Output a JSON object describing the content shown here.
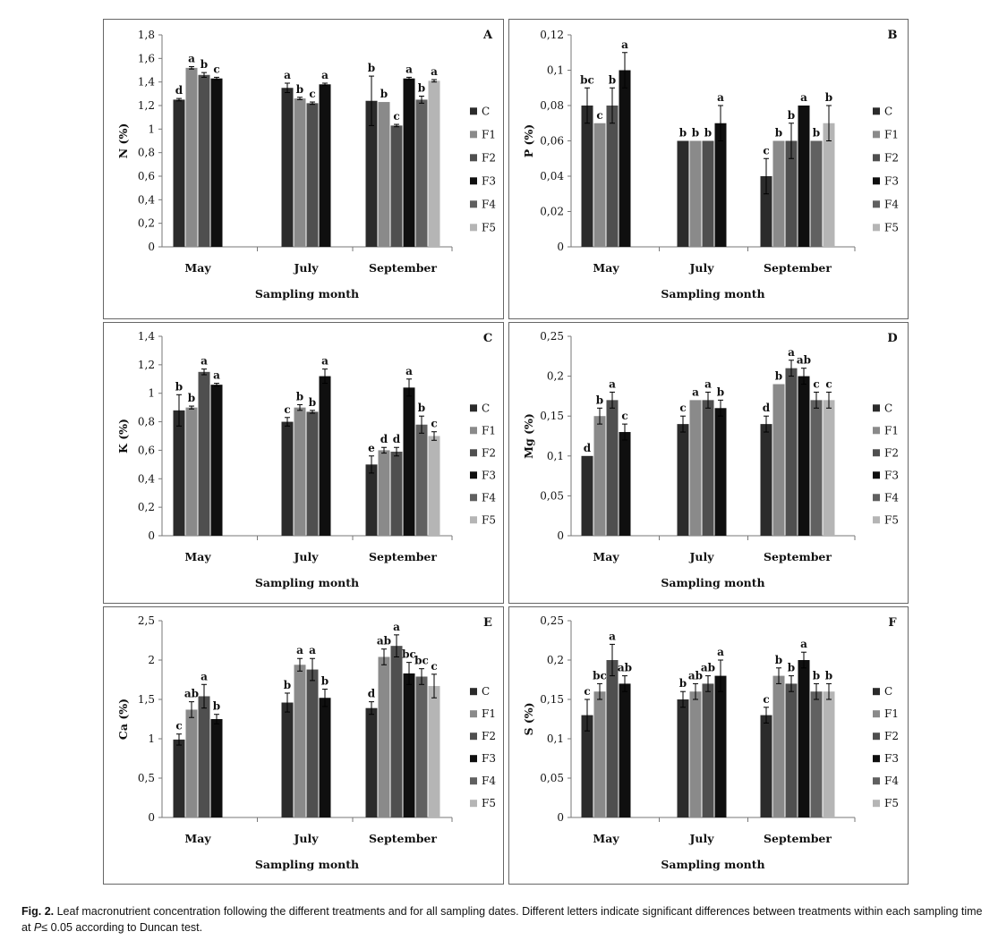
{
  "caption": {
    "label": "Fig. 2.",
    "text_before": " Leaf macronutrient concentration following the different treatments and for all sampling dates. Different letters indicate significant differences between treatments within each sampling time at ",
    "p_symbol": "P",
    "text_after": "≤ 0.05 according to Duncan test."
  },
  "colors": {
    "C": "#2b2b2b",
    "F1": "#8a8a8a",
    "F2": "#4f4f4f",
    "F3": "#0f0f0f",
    "F4": "#606060",
    "F5": "#b5b5b5"
  },
  "chart_data": [
    {
      "type": "bar",
      "panel": "A",
      "ylabel": "N (%)",
      "xlabel": "Sampling month",
      "ylim": [
        0,
        1.8
      ],
      "yticks": [
        "0",
        "0,2",
        "0,4",
        "0,6",
        "0,8",
        "1",
        "1,2",
        "1,4",
        "1,6",
        "1,8"
      ],
      "categories": [
        "May",
        "July",
        "September"
      ],
      "legend": [
        "C",
        "F1",
        "F2",
        "F3",
        "F4",
        "F5"
      ],
      "series": [
        {
          "name": "C",
          "values": [
            1.25,
            1.35,
            1.24
          ],
          "errors": [
            0.01,
            0.04,
            0.21
          ],
          "letters": [
            "d",
            "a",
            "b"
          ]
        },
        {
          "name": "F1",
          "values": [
            1.52,
            1.26,
            1.23
          ],
          "errors": [
            0.01,
            0.01,
            0.0
          ],
          "letters": [
            "a",
            "b",
            "b"
          ]
        },
        {
          "name": "F2",
          "values": [
            1.46,
            1.22,
            1.03
          ],
          "errors": [
            0.02,
            0.01,
            0.01
          ],
          "letters": [
            "b",
            "c",
            "c"
          ]
        },
        {
          "name": "F3",
          "values": [
            1.43,
            1.38,
            1.43
          ],
          "errors": [
            0.01,
            0.01,
            0.01
          ],
          "letters": [
            "c",
            "a",
            "a"
          ]
        },
        {
          "name": "F4",
          "values": [
            null,
            null,
            1.25
          ],
          "errors": [
            null,
            null,
            0.03
          ],
          "letters": [
            "",
            "",
            "b"
          ]
        },
        {
          "name": "F5",
          "values": [
            null,
            null,
            1.41
          ],
          "errors": [
            null,
            null,
            0.01
          ],
          "letters": [
            "",
            "",
            "a"
          ]
        }
      ]
    },
    {
      "type": "bar",
      "panel": "B",
      "ylabel": "P (%)",
      "xlabel": "Sampling month",
      "ylim": [
        0,
        0.12
      ],
      "yticks": [
        "0",
        "0,02",
        "0,04",
        "0,06",
        "0,08",
        "0,1",
        "0,12"
      ],
      "categories": [
        "May",
        "July",
        "September"
      ],
      "legend": [
        "C",
        "F1",
        "F2",
        "F3",
        "F4",
        "F5"
      ],
      "series": [
        {
          "name": "C",
          "values": [
            0.08,
            0.06,
            0.04
          ],
          "errors": [
            0.01,
            0,
            0.01
          ],
          "letters": [
            "bc",
            "b",
            "c"
          ]
        },
        {
          "name": "F1",
          "values": [
            0.07,
            0.06,
            0.06
          ],
          "errors": [
            0,
            0,
            0
          ],
          "letters": [
            "c",
            "b",
            "b"
          ]
        },
        {
          "name": "F2",
          "values": [
            0.08,
            0.06,
            0.06
          ],
          "errors": [
            0.01,
            0,
            0.01
          ],
          "letters": [
            "b",
            "b",
            "b"
          ]
        },
        {
          "name": "F3",
          "values": [
            0.1,
            0.07,
            0.08
          ],
          "errors": [
            0.01,
            0.01,
            0
          ],
          "letters": [
            "a",
            "a",
            "a"
          ]
        },
        {
          "name": "F4",
          "values": [
            null,
            null,
            0.06
          ],
          "errors": [
            null,
            null,
            0
          ],
          "letters": [
            "",
            "",
            "b"
          ]
        },
        {
          "name": "F5",
          "values": [
            null,
            null,
            0.07
          ],
          "errors": [
            null,
            null,
            0.01
          ],
          "letters": [
            "",
            "",
            "b"
          ]
        }
      ]
    },
    {
      "type": "bar",
      "panel": "C",
      "ylabel": "K (%)",
      "xlabel": "Sampling month",
      "ylim": [
        0,
        1.4
      ],
      "yticks": [
        "0",
        "0,2",
        "0,4",
        "0,6",
        "0,8",
        "1",
        "1,2",
        "1,4"
      ],
      "categories": [
        "May",
        "July",
        "September"
      ],
      "legend": [
        "C",
        "F1",
        "F2",
        "F3",
        "F4",
        "F5"
      ],
      "series": [
        {
          "name": "C",
          "values": [
            0.88,
            0.8,
            0.5
          ],
          "errors": [
            0.11,
            0.03,
            0.06
          ],
          "letters": [
            "b",
            "c",
            "e"
          ]
        },
        {
          "name": "F1",
          "values": [
            0.9,
            0.9,
            0.6
          ],
          "errors": [
            0.01,
            0.02,
            0.02
          ],
          "letters": [
            "b",
            "b",
            "d"
          ]
        },
        {
          "name": "F2",
          "values": [
            1.15,
            0.87,
            0.59
          ],
          "errors": [
            0.02,
            0.01,
            0.03
          ],
          "letters": [
            "a",
            "b",
            "d"
          ]
        },
        {
          "name": "F3",
          "values": [
            1.06,
            1.12,
            1.04
          ],
          "errors": [
            0.01,
            0.05,
            0.06
          ],
          "letters": [
            "a",
            "a",
            "a"
          ]
        },
        {
          "name": "F4",
          "values": [
            null,
            null,
            0.78
          ],
          "errors": [
            null,
            null,
            0.06
          ],
          "letters": [
            "",
            "",
            "b"
          ]
        },
        {
          "name": "F5",
          "values": [
            null,
            null,
            0.7
          ],
          "errors": [
            null,
            null,
            0.03
          ],
          "letters": [
            "",
            "",
            "c"
          ]
        }
      ]
    },
    {
      "type": "bar",
      "panel": "D",
      "ylabel": "Mg (%)",
      "xlabel": "Sampling month",
      "ylim": [
        0,
        0.25
      ],
      "yticks": [
        "0",
        "0,05",
        "0,1",
        "0,15",
        "0,2",
        "0,25"
      ],
      "categories": [
        "May",
        "July",
        "September"
      ],
      "legend": [
        "C",
        "F1",
        "F2",
        "F3",
        "F4",
        "F5"
      ],
      "series": [
        {
          "name": "C",
          "values": [
            0.1,
            0.14,
            0.14
          ],
          "errors": [
            0,
            0.01,
            0.01
          ],
          "letters": [
            "d",
            "c",
            "d"
          ]
        },
        {
          "name": "F1",
          "values": [
            0.15,
            0.17,
            0.19
          ],
          "errors": [
            0.01,
            0,
            0
          ],
          "letters": [
            "b",
            "a",
            "b"
          ]
        },
        {
          "name": "F2",
          "values": [
            0.17,
            0.17,
            0.21
          ],
          "errors": [
            0.01,
            0.01,
            0.01
          ],
          "letters": [
            "a",
            "a",
            "a"
          ]
        },
        {
          "name": "F3",
          "values": [
            0.13,
            0.16,
            0.2
          ],
          "errors": [
            0.01,
            0.01,
            0.01
          ],
          "letters": [
            "c",
            "b",
            "ab"
          ]
        },
        {
          "name": "F4",
          "values": [
            null,
            null,
            0.17
          ],
          "errors": [
            null,
            null,
            0.01
          ],
          "letters": [
            "",
            "",
            "c"
          ]
        },
        {
          "name": "F5",
          "values": [
            null,
            null,
            0.17
          ],
          "errors": [
            null,
            null,
            0.01
          ],
          "letters": [
            "",
            "",
            "c"
          ]
        }
      ]
    },
    {
      "type": "bar",
      "panel": "E",
      "ylabel": "Ca (%)",
      "xlabel": "Sampling month",
      "ylim": [
        0,
        2.5
      ],
      "yticks": [
        "0",
        "0,5",
        "1",
        "1,5",
        "2",
        "2,5"
      ],
      "categories": [
        "May",
        "July",
        "September"
      ],
      "legend": [
        "C",
        "F1",
        "F2",
        "F3",
        "F4",
        "F5"
      ],
      "series": [
        {
          "name": "C",
          "values": [
            0.99,
            1.46,
            1.39
          ],
          "errors": [
            0.07,
            0.12,
            0.08
          ],
          "letters": [
            "c",
            "b",
            "d"
          ]
        },
        {
          "name": "F1",
          "values": [
            1.37,
            1.94,
            2.04
          ],
          "errors": [
            0.1,
            0.08,
            0.1
          ],
          "letters": [
            "ab",
            "a",
            "ab"
          ]
        },
        {
          "name": "F2",
          "values": [
            1.54,
            1.88,
            2.18
          ],
          "errors": [
            0.15,
            0.14,
            0.14
          ],
          "letters": [
            "a",
            "a",
            "a"
          ]
        },
        {
          "name": "F3",
          "values": [
            1.25,
            1.52,
            1.83
          ],
          "errors": [
            0.06,
            0.11,
            0.14
          ],
          "letters": [
            "b",
            "b",
            "bc"
          ]
        },
        {
          "name": "F4",
          "values": [
            null,
            null,
            1.79
          ],
          "errors": [
            null,
            null,
            0.1
          ],
          "letters": [
            "",
            "",
            "bc"
          ]
        },
        {
          "name": "F5",
          "values": [
            null,
            null,
            1.67
          ],
          "errors": [
            null,
            null,
            0.15
          ],
          "letters": [
            "",
            "",
            "c"
          ]
        }
      ]
    },
    {
      "type": "bar",
      "panel": "F",
      "ylabel": "S (%)",
      "xlabel": "Sampling month",
      "ylim": [
        0,
        0.25
      ],
      "yticks": [
        "0",
        "0,05",
        "0,1",
        "0,15",
        "0,2",
        "0,25"
      ],
      "categories": [
        "May",
        "July",
        "September"
      ],
      "legend": [
        "C",
        "F1",
        "F2",
        "F3",
        "F4",
        "F5"
      ],
      "series": [
        {
          "name": "C",
          "values": [
            0.13,
            0.15,
            0.13
          ],
          "errors": [
            0.02,
            0.01,
            0.01
          ],
          "letters": [
            "c",
            "b",
            "c"
          ]
        },
        {
          "name": "F1",
          "values": [
            0.16,
            0.16,
            0.18
          ],
          "errors": [
            0.01,
            0.01,
            0.01
          ],
          "letters": [
            "bc",
            "ab",
            "b"
          ]
        },
        {
          "name": "F2",
          "values": [
            0.2,
            0.17,
            0.17
          ],
          "errors": [
            0.02,
            0.01,
            0.01
          ],
          "letters": [
            "a",
            "ab",
            "b"
          ]
        },
        {
          "name": "F3",
          "values": [
            0.17,
            0.18,
            0.2
          ],
          "errors": [
            0.01,
            0.02,
            0.01
          ],
          "letters": [
            "ab",
            "a",
            "a"
          ]
        },
        {
          "name": "F4",
          "values": [
            null,
            null,
            0.16
          ],
          "errors": [
            null,
            null,
            0.01
          ],
          "letters": [
            "",
            "",
            "b"
          ]
        },
        {
          "name": "F5",
          "values": [
            null,
            null,
            0.16
          ],
          "errors": [
            null,
            null,
            0.01
          ],
          "letters": [
            "",
            "",
            "b"
          ]
        }
      ]
    }
  ]
}
